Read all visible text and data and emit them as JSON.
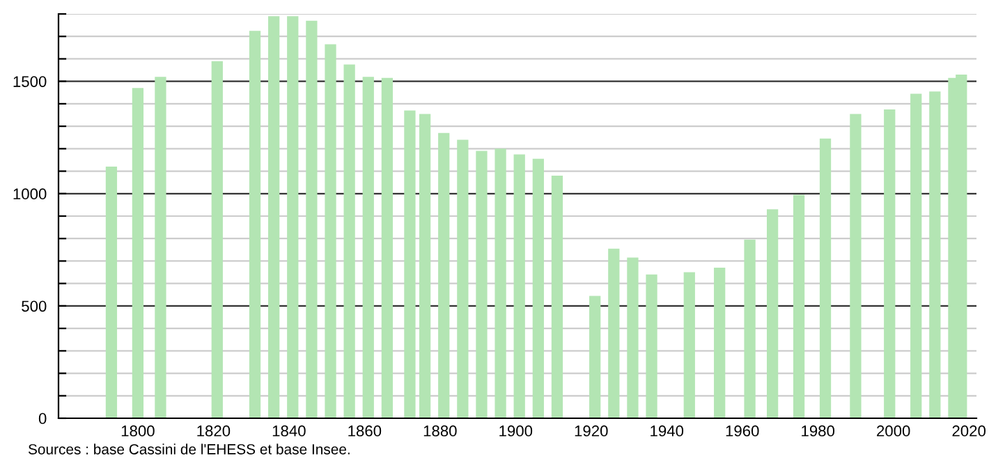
{
  "chart_data": {
    "type": "bar",
    "x": [
      1793,
      1800,
      1806,
      1821,
      1831,
      1836,
      1841,
      1846,
      1851,
      1856,
      1861,
      1866,
      1872,
      1876,
      1881,
      1886,
      1891,
      1896,
      1901,
      1906,
      1911,
      1921,
      1926,
      1931,
      1936,
      1946,
      1954,
      1962,
      1968,
      1975,
      1982,
      1990,
      1999,
      2006,
      2011,
      2016,
      2018
    ],
    "values": [
      1120,
      1470,
      1520,
      1590,
      1725,
      1790,
      1790,
      1770,
      1665,
      1575,
      1520,
      1515,
      1370,
      1355,
      1270,
      1240,
      1190,
      1200,
      1175,
      1155,
      1080,
      545,
      755,
      715,
      640,
      650,
      670,
      795,
      930,
      995,
      1245,
      1355,
      1375,
      1445,
      1455,
      1515,
      1530
    ],
    "color": "#b3e5b3",
    "xlim": [
      1779,
      2022
    ],
    "xticks": [
      1800,
      1820,
      1840,
      1860,
      1880,
      1900,
      1920,
      1940,
      1960,
      1980,
      2000,
      2020
    ],
    "ylim": [
      0,
      1800
    ],
    "yticks": [
      0,
      {
        "value": 100,
        "label": null
      },
      {
        "value": 200,
        "label": null
      },
      {
        "value": 300,
        "label": null
      },
      {
        "value": 400,
        "label": null
      },
      500,
      {
        "value": 600,
        "label": null
      },
      {
        "value": 700,
        "label": null
      },
      {
        "value": 800,
        "label": null
      },
      {
        "value": 900,
        "label": null
      },
      1000,
      {
        "value": 1100,
        "label": null
      },
      {
        "value": 1200,
        "label": null
      },
      {
        "value": 1300,
        "label": null
      },
      {
        "value": 1400,
        "label": null
      },
      1500,
      {
        "value": 1600,
        "label": null
      },
      {
        "value": 1700,
        "label": null
      },
      {
        "value": 1800,
        "label": null
      }
    ],
    "grid": "y",
    "annotations": [
      "Sources : base Cassini de l'EHESS et base Insee."
    ]
  }
}
